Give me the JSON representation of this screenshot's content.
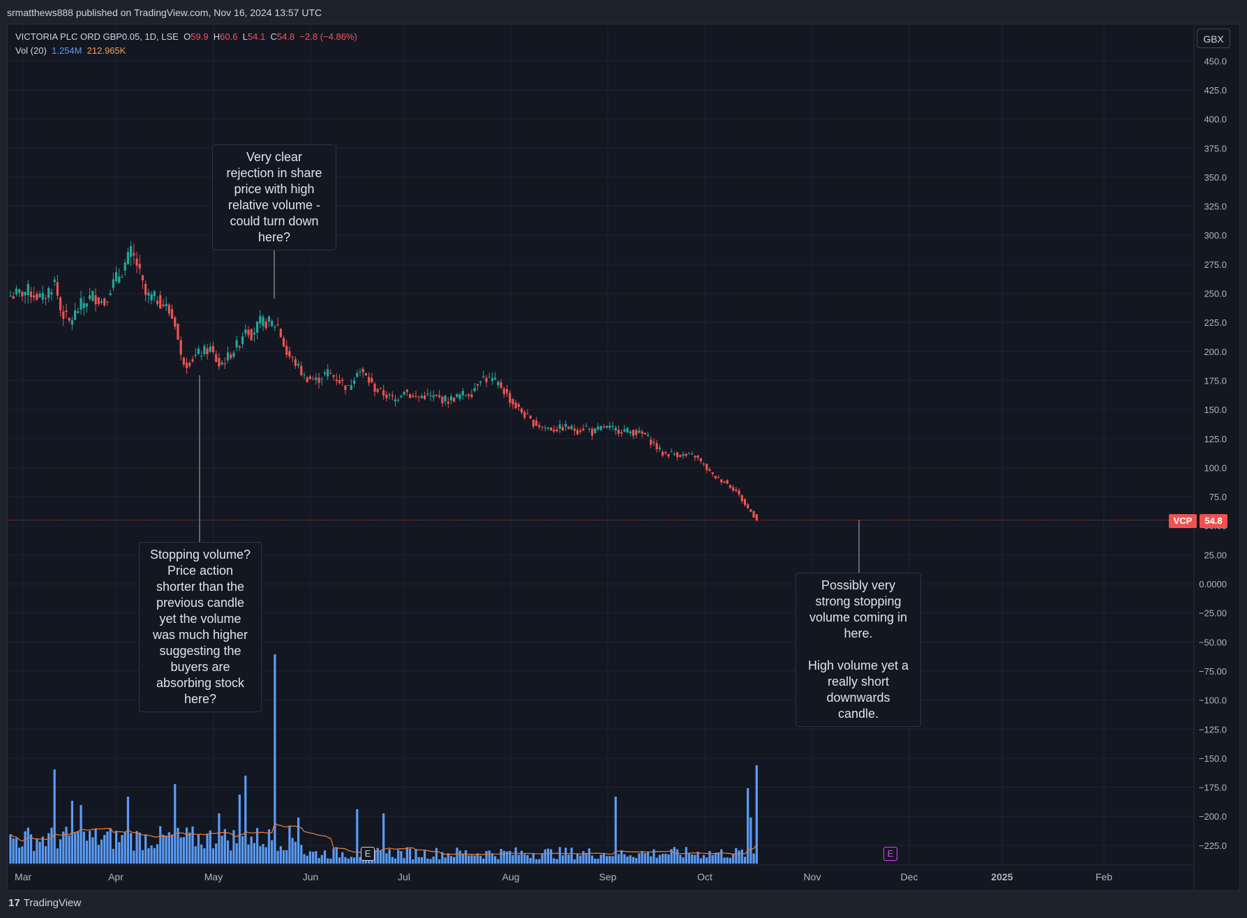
{
  "header": {
    "publisher_text": "srmatthews888 published on TradingView.com, Nov 16, 2024 13:57 UTC"
  },
  "legend": {
    "symbol": "VICTORIA PLC ORD GBP0.05, 1D, LSE",
    "open_label": "O",
    "open": "59.9",
    "high_label": "H",
    "high": "60.6",
    "low_label": "L",
    "low": "54.1",
    "close_label": "C",
    "close": "54.8",
    "change": "−2.8 (−4.86%)",
    "vol_label": "Vol (20)",
    "vol_value": "1.254M",
    "vol_ma": "212.965K"
  },
  "currency": "GBX",
  "price_badge": {
    "symbol": "VCP",
    "value": "54.8"
  },
  "footer": {
    "logo": "17",
    "brand": "TradingView"
  },
  "colors": {
    "up": "#26a69a",
    "down": "#ef5350",
    "volume": "#5b9cf6",
    "vol_ma": "#e07a3a",
    "background": "#131722",
    "grid": "#1f2330"
  },
  "annotations": [
    {
      "text": "Very clear\nrejection in share\nprice with high\nrelative volume -\ncould turn down\nhere?"
    },
    {
      "text": "Stopping volume?\nPrice action\nshorter than the\nprevious candle\nyet the volume\nwas much higher\nsuggesting the\nbuyers are\nabsorbing stock\nhere?"
    },
    {
      "text": "Possibly very\nstrong stopping\nvolume coming in\nhere.\n\nHigh volume yet a\nreally short\ndownwards\ncandle."
    }
  ],
  "events": [
    {
      "label": "E"
    },
    {
      "label": "E"
    }
  ],
  "chart_data": {
    "type": "candlestick",
    "yticks": [
      "450.0",
      "425.0",
      "400.0",
      "375.0",
      "350.0",
      "325.0",
      "300.0",
      "275.0",
      "250.0",
      "225.0",
      "200.0",
      "175.0",
      "150.0",
      "125.0",
      "100.0",
      "75.0",
      "50.00",
      "25.00",
      "0.0000",
      "−25.00",
      "−50.00",
      "−75.00",
      "−100.0",
      "−125.0",
      "−150.0",
      "−175.0",
      "−200.0",
      "−225.0"
    ],
    "ylim": [
      -245,
      460
    ],
    "xticks": [
      "Mar",
      "Apr",
      "May",
      "Jun",
      "Jul",
      "Aug",
      "Sep",
      "Oct",
      "Nov",
      "Dec",
      "2025",
      "Feb"
    ],
    "last_price": 54.8,
    "anchors": [
      {
        "bar": 0,
        "c": 248
      },
      {
        "bar": 6,
        "c": 252
      },
      {
        "bar": 11,
        "c": 245
      },
      {
        "bar": 15,
        "c": 260
      },
      {
        "bar": 17,
        "c": 236
      },
      {
        "bar": 20,
        "c": 225
      },
      {
        "bar": 24,
        "c": 240
      },
      {
        "bar": 28,
        "c": 248
      },
      {
        "bar": 32,
        "c": 242
      },
      {
        "bar": 34,
        "c": 255
      },
      {
        "bar": 38,
        "c": 270
      },
      {
        "bar": 41,
        "c": 285
      },
      {
        "bar": 43,
        "c": 275
      },
      {
        "bar": 46,
        "c": 248
      },
      {
        "bar": 50,
        "c": 245
      },
      {
        "bar": 53,
        "c": 238
      },
      {
        "bar": 56,
        "c": 225
      },
      {
        "bar": 58,
        "c": 195
      },
      {
        "bar": 60,
        "c": 190
      },
      {
        "bar": 64,
        "c": 198
      },
      {
        "bar": 68,
        "c": 202
      },
      {
        "bar": 71,
        "c": 188
      },
      {
        "bar": 74,
        "c": 195
      },
      {
        "bar": 78,
        "c": 208
      },
      {
        "bar": 80,
        "c": 222
      },
      {
        "bar": 82,
        "c": 215
      },
      {
        "bar": 85,
        "c": 225
      },
      {
        "bar": 88,
        "c": 225
      },
      {
        "bar": 91,
        "c": 222
      },
      {
        "bar": 94,
        "c": 198
      },
      {
        "bar": 97,
        "c": 190
      },
      {
        "bar": 100,
        "c": 178
      },
      {
        "bar": 104,
        "c": 175
      },
      {
        "bar": 108,
        "c": 182
      },
      {
        "bar": 112,
        "c": 175
      },
      {
        "bar": 115,
        "c": 168
      },
      {
        "bar": 118,
        "c": 185
      },
      {
        "bar": 121,
        "c": 178
      },
      {
        "bar": 124,
        "c": 168
      },
      {
        "bar": 128,
        "c": 162
      },
      {
        "bar": 131,
        "c": 158
      },
      {
        "bar": 134,
        "c": 168
      },
      {
        "bar": 137,
        "c": 160
      },
      {
        "bar": 141,
        "c": 162
      },
      {
        "bar": 145,
        "c": 160
      },
      {
        "bar": 149,
        "c": 158
      },
      {
        "bar": 153,
        "c": 162
      },
      {
        "bar": 157,
        "c": 165
      },
      {
        "bar": 160,
        "c": 178
      },
      {
        "bar": 164,
        "c": 175
      },
      {
        "bar": 167,
        "c": 170
      },
      {
        "bar": 171,
        "c": 155
      },
      {
        "bar": 174,
        "c": 148
      },
      {
        "bar": 177,
        "c": 140
      },
      {
        "bar": 181,
        "c": 135
      },
      {
        "bar": 185,
        "c": 133
      },
      {
        "bar": 189,
        "c": 135
      },
      {
        "bar": 193,
        "c": 132
      },
      {
        "bar": 196,
        "c": 135
      },
      {
        "bar": 198,
        "c": 130
      },
      {
        "bar": 202,
        "c": 135
      },
      {
        "bar": 205,
        "c": 133
      },
      {
        "bar": 209,
        "c": 132
      },
      {
        "bar": 213,
        "c": 130
      },
      {
        "bar": 216,
        "c": 128
      },
      {
        "bar": 219,
        "c": 120
      },
      {
        "bar": 222,
        "c": 112
      },
      {
        "bar": 226,
        "c": 112
      },
      {
        "bar": 230,
        "c": 110
      },
      {
        "bar": 233,
        "c": 110
      },
      {
        "bar": 236,
        "c": 102
      },
      {
        "bar": 239,
        "c": 93
      },
      {
        "bar": 243,
        "c": 88
      },
      {
        "bar": 247,
        "c": 80
      },
      {
        "bar": 250,
        "c": 68
      },
      {
        "bar": 252,
        "c": 62
      },
      {
        "bar": 254,
        "c": 54.8
      }
    ],
    "volume_spikes": [
      {
        "bar": 15,
        "v": 0.45
      },
      {
        "bar": 21,
        "v": 0.3
      },
      {
        "bar": 24,
        "v": 0.28
      },
      {
        "bar": 40,
        "v": 0.32
      },
      {
        "bar": 56,
        "v": 0.38
      },
      {
        "bar": 71,
        "v": 0.24
      },
      {
        "bar": 78,
        "v": 0.33
      },
      {
        "bar": 80,
        "v": 0.42
      },
      {
        "bar": 90,
        "v": 1.0
      },
      {
        "bar": 98,
        "v": 0.22
      },
      {
        "bar": 118,
        "v": 0.26
      },
      {
        "bar": 127,
        "v": 0.24
      },
      {
        "bar": 206,
        "v": 0.32
      },
      {
        "bar": 251,
        "v": 0.36
      },
      {
        "bar": 252,
        "v": 0.22
      },
      {
        "bar": 254,
        "v": 0.47
      }
    ]
  }
}
